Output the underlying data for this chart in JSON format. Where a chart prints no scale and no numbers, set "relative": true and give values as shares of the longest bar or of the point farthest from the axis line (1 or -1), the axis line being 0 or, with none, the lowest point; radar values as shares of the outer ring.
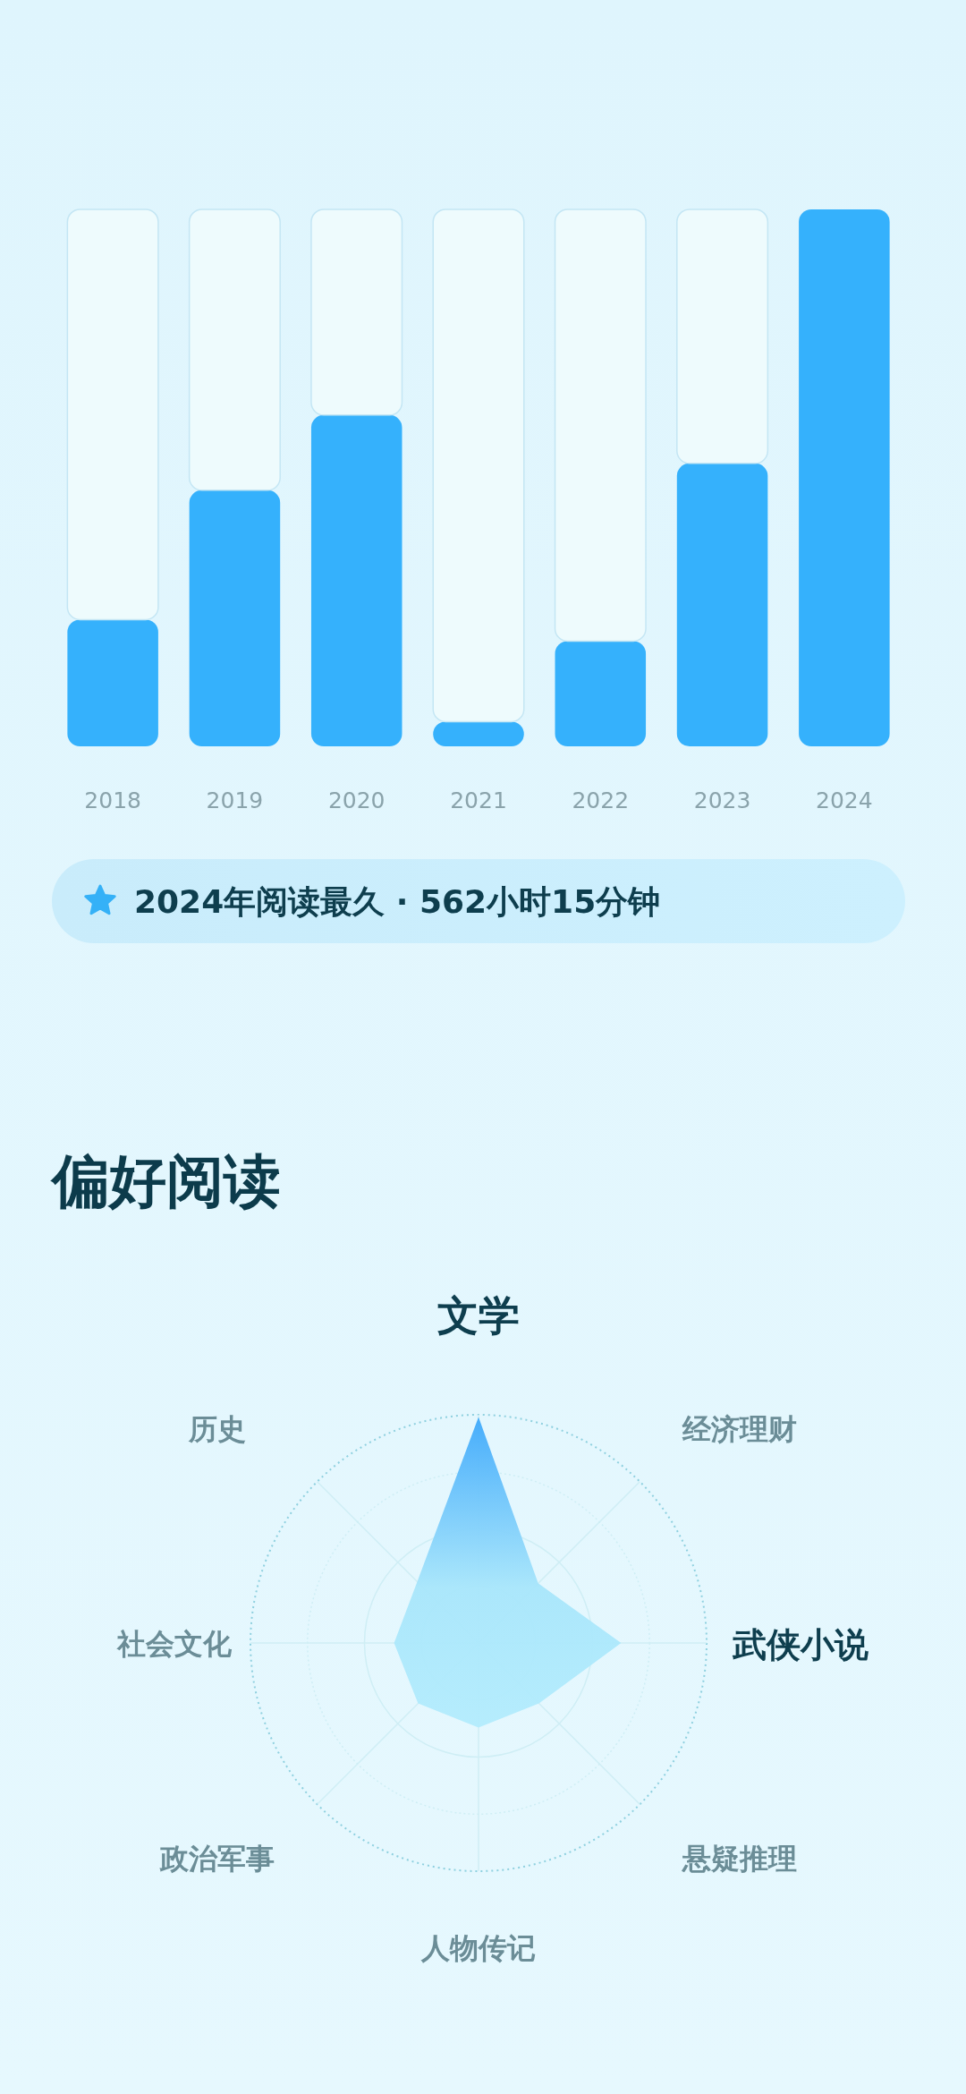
{
  "chart_data": [
    {
      "type": "bar",
      "relative": true,
      "stacked": true,
      "categories": [
        "2018",
        "2019",
        "2020",
        "2021",
        "2022",
        "2023",
        "2024"
      ],
      "series": [
        {
          "color": "#35b1fc",
          "values": [
            0.236,
            0.477,
            0.617,
            0.046,
            0.196,
            0.527,
            1
          ]
        },
        {
          "color": "#eefbfd",
          "values": [
            0.764,
            0.523,
            0.383,
            0.954,
            0.804,
            0.473,
            0
          ]
        }
      ],
      "annotations": [
        "2024年阅读最久 · 562小时15分钟"
      ]
    },
    {
      "type": "radar",
      "relative": true,
      "grid": true,
      "title": "偏好阅读",
      "categories": [
        "文学",
        "经济理财",
        "武侠小说",
        "悬疑推理",
        "人物传记",
        "政治军事",
        "社会文化",
        "历史"
      ],
      "series": [
        {
          "color": "#3ea9fb",
          "values": [
            0.99,
            0.37,
            0.625,
            0.375,
            0.37,
            0.375,
            0.37,
            0.38
          ]
        }
      ]
    }
  ]
}
